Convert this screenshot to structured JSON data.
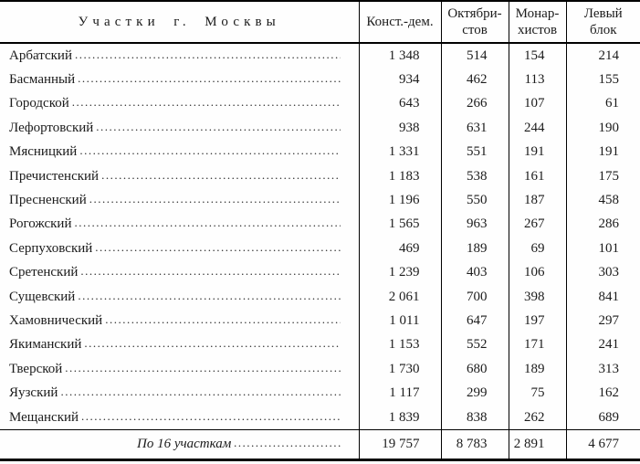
{
  "table": {
    "header": {
      "col_district": "Участки г. Москвы",
      "col_kadets": "Конст.-дем.",
      "col_octobrists": "Октябри-\nстов",
      "col_monarchists": "Монар-\nхистов",
      "col_left_bloc": "Левый\nблок"
    },
    "rows": [
      {
        "district": "Арбатский",
        "values": [
          "1 348",
          "514",
          "154",
          "214"
        ]
      },
      {
        "district": "Басманный",
        "values": [
          "934",
          "462",
          "113",
          "155"
        ]
      },
      {
        "district": "Городской",
        "values": [
          "643",
          "266",
          "107",
          "61"
        ]
      },
      {
        "district": "Лефортовский",
        "values": [
          "938",
          "631",
          "244",
          "190"
        ]
      },
      {
        "district": "Мясницкий",
        "values": [
          "1 331",
          "551",
          "191",
          "191"
        ]
      },
      {
        "district": "Пречистенский",
        "values": [
          "1 183",
          "538",
          "161",
          "175"
        ]
      },
      {
        "district": "Пресненский",
        "values": [
          "1 196",
          "550",
          "187",
          "458"
        ]
      },
      {
        "district": "Рогожский",
        "values": [
          "1 565",
          "963",
          "267",
          "286"
        ]
      },
      {
        "district": "Серпуховский",
        "values": [
          "469",
          "189",
          "69",
          "101"
        ]
      },
      {
        "district": "Сретенский",
        "values": [
          "1 239",
          "403",
          "106",
          "303"
        ]
      },
      {
        "district": "Сущевский",
        "values": [
          "2 061",
          "700",
          "398",
          "841"
        ]
      },
      {
        "district": "Хамовнический",
        "values": [
          "1 011",
          "647",
          "197",
          "297"
        ]
      },
      {
        "district": "Якиманский",
        "values": [
          "1 153",
          "552",
          "171",
          "241"
        ]
      },
      {
        "district": "Тверской",
        "values": [
          "1 730",
          "680",
          "189",
          "313"
        ]
      },
      {
        "district": "Яузский",
        "values": [
          "1 117",
          "299",
          "75",
          "162"
        ]
      },
      {
        "district": "Мещанский",
        "values": [
          "1 839",
          "838",
          "262",
          "689"
        ]
      }
    ],
    "total": {
      "label": "По 16 участкам",
      "values": [
        "19 757",
        "8 783",
        "2 891",
        "4 677"
      ]
    }
  },
  "colors": {
    "background": "#fefefe",
    "text": "#1b1b1b",
    "rule": "#000000"
  }
}
